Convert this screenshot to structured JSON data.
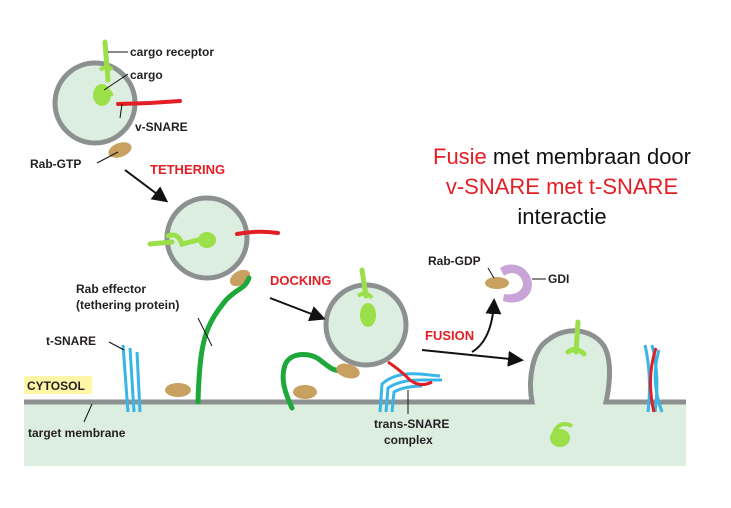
{
  "labels": {
    "cargo_receptor": "cargo receptor",
    "cargo": "cargo",
    "v_snare": "v-SNARE",
    "rab_gtp": "Rab-GTP",
    "rab_effector_1": "Rab effector",
    "rab_effector_2": "(tethering protein)",
    "t_snare": "t-SNARE",
    "cytosol": "CYTOSOL",
    "target_membrane": "target membrane",
    "trans_snare_1": "trans-SNARE",
    "trans_snare_2": "complex",
    "rab_gdp": "Rab-GDP",
    "gdi": "GDI"
  },
  "steps": {
    "tethering": "TETHERING",
    "docking": "DOCKING",
    "fusion": "FUSION"
  },
  "caption": {
    "line1_red": "Fusie",
    "line1_rest": " met membraan door",
    "line2": "v-SNARE met t-SNARE",
    "line3": "interactie"
  },
  "colors": {
    "vesicle_fill": "#dceee0",
    "membrane": "#8c9091",
    "cytosol_bg": "#dceee0",
    "cargo_green": "#9be048",
    "v_snare_red": "#e31e24",
    "t_snare_blue": "#39b6e8",
    "rab_tan": "#c8a060",
    "tether_green": "#1fa83a",
    "gdi_purple": "#c9a4d8",
    "cytosol_label_bg": "#fff6a8",
    "step_red": "#e31e24"
  }
}
